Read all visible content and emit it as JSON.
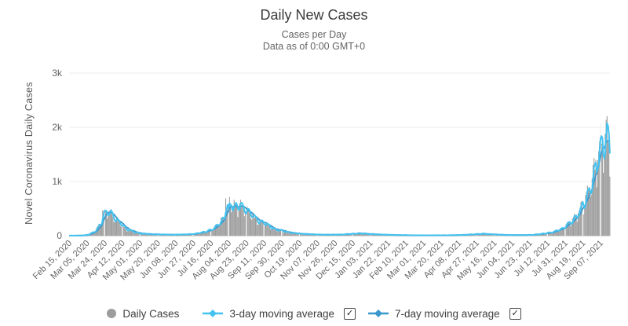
{
  "header": {
    "title": "Daily New Cases",
    "subtitle_line1": "Cases per Day",
    "subtitle_line2": "Data as of 0:00 GMT+0"
  },
  "y_axis": {
    "title": "Novel Coronavirus Daily Cases"
  },
  "legend": {
    "daily_cases_label": "Daily Cases",
    "ma3_label": "3-day moving average",
    "ma7_label": "7-day moving average",
    "ma3_checked": true,
    "ma7_checked": true,
    "checkmark": "✓"
  },
  "colors": {
    "bars": "#9d9d9d",
    "ma3_line": "#45c2f0",
    "ma7_line": "#3a97cc",
    "gridline": "#ececec",
    "axis_line": "#d4d4d4",
    "tick_stripe": "#ffffff",
    "axis_text": "#656565",
    "title_text": "#3b3b3b",
    "subtitle_text": "#646464"
  },
  "chart_data": {
    "type": "bar",
    "title": "Daily New Cases",
    "subtitle": "Cases per Day — Data as of 0:00 GMT+0",
    "ylabel": "Novel Coronavirus Daily Cases",
    "ylim": [
      0,
      3000
    ],
    "y_tick_values": [
      0,
      1000,
      2000,
      3000
    ],
    "y_tick_labels": [
      "0",
      "1k",
      "2k",
      "3k"
    ],
    "grid": "horizontal-only",
    "legend_position": "bottom",
    "x_tick_interval_days": 19,
    "days_total": 581,
    "x_tick_labels": [
      "Feb 15, 2020",
      "Mar 05, 2020",
      "Mar 24, 2020",
      "Apr 12, 2020",
      "May 01, 2020",
      "May 20, 2020",
      "Jun 08, 2020",
      "Jun 27, 2020",
      "Jul 16, 2020",
      "Aug 04, 2020",
      "Aug 23, 2020",
      "Sep 11, 2020",
      "Sep 30, 2020",
      "Oct 19, 2020",
      "Nov 07, 2020",
      "Nov 26, 2020",
      "Dec 15, 2020",
      "Jan 03, 2021",
      "Jan 22, 2021",
      "Feb 10, 2021",
      "Mar 01, 2021",
      "Mar 20, 2021",
      "Apr 08, 2021",
      "Apr 27, 2021",
      "May 16, 2021",
      "Jun 04, 2021",
      "Jun 23, 2021",
      "Jul 12, 2021",
      "Jul 31, 2021",
      "Aug 19, 2021",
      "Sep 07, 2021"
    ],
    "series": [
      {
        "name": "Daily Cases",
        "type": "bar",
        "color": "#9d9d9d"
      },
      {
        "name": "3-day moving average",
        "type": "line",
        "window": 3,
        "color": "#45c2f0"
      },
      {
        "name": "7-day moving average",
        "type": "line",
        "window": 7,
        "color": "#3a97cc"
      }
    ],
    "daily_envelope_points": [
      [
        0,
        1
      ],
      [
        6,
        2
      ],
      [
        12,
        4
      ],
      [
        16,
        8
      ],
      [
        19,
        20
      ],
      [
        22,
        35
      ],
      [
        25,
        55
      ],
      [
        28,
        95
      ],
      [
        31,
        170
      ],
      [
        34,
        280
      ],
      [
        36,
        350
      ],
      [
        38,
        400
      ],
      [
        40,
        415
      ],
      [
        42,
        420
      ],
      [
        44,
        405
      ],
      [
        46,
        380
      ],
      [
        48,
        340
      ],
      [
        50,
        300
      ],
      [
        52,
        260
      ],
      [
        54,
        225
      ],
      [
        56,
        195
      ],
      [
        58,
        165
      ],
      [
        60,
        140
      ],
      [
        62,
        118
      ],
      [
        64,
        100
      ],
      [
        66,
        85
      ],
      [
        68,
        72
      ],
      [
        70,
        62
      ],
      [
        73,
        50
      ],
      [
        76,
        42
      ],
      [
        80,
        35
      ],
      [
        85,
        30
      ],
      [
        90,
        26
      ],
      [
        96,
        23
      ],
      [
        102,
        21
      ],
      [
        108,
        20
      ],
      [
        114,
        20
      ],
      [
        120,
        22
      ],
      [
        126,
        26
      ],
      [
        130,
        30
      ],
      [
        134,
        36
      ],
      [
        138,
        46
      ],
      [
        142,
        60
      ],
      [
        146,
        78
      ],
      [
        150,
        102
      ],
      [
        154,
        135
      ],
      [
        158,
        180
      ],
      [
        161,
        230
      ],
      [
        164,
        290
      ],
      [
        167,
        360
      ],
      [
        170,
        430
      ],
      [
        173,
        490
      ],
      [
        176,
        540
      ],
      [
        179,
        560
      ],
      [
        182,
        545
      ],
      [
        185,
        510
      ],
      [
        188,
        470
      ],
      [
        191,
        430
      ],
      [
        194,
        390
      ],
      [
        197,
        350
      ],
      [
        200,
        310
      ],
      [
        204,
        265
      ],
      [
        208,
        225
      ],
      [
        212,
        188
      ],
      [
        216,
        155
      ],
      [
        220,
        128
      ],
      [
        224,
        105
      ],
      [
        228,
        88
      ],
      [
        232,
        72
      ],
      [
        236,
        60
      ],
      [
        240,
        50
      ],
      [
        245,
        40
      ],
      [
        250,
        33
      ],
      [
        256,
        27
      ],
      [
        262,
        23
      ],
      [
        270,
        20
      ],
      [
        278,
        18
      ],
      [
        286,
        20
      ],
      [
        294,
        25
      ],
      [
        300,
        31
      ],
      [
        306,
        38
      ],
      [
        311,
        42
      ],
      [
        316,
        38
      ],
      [
        322,
        31
      ],
      [
        328,
        25
      ],
      [
        335,
        20
      ],
      [
        342,
        16
      ],
      [
        350,
        12
      ],
      [
        358,
        10
      ],
      [
        368,
        8
      ],
      [
        378,
        7
      ],
      [
        390,
        7
      ],
      [
        402,
        8
      ],
      [
        412,
        10
      ],
      [
        420,
        14
      ],
      [
        426,
        19
      ],
      [
        432,
        26
      ],
      [
        437,
        32
      ],
      [
        442,
        34
      ],
      [
        447,
        30
      ],
      [
        453,
        24
      ],
      [
        460,
        18
      ],
      [
        468,
        14
      ],
      [
        476,
        11
      ],
      [
        484,
        11
      ],
      [
        490,
        12
      ],
      [
        497,
        17
      ],
      [
        503,
        26
      ],
      [
        509,
        40
      ],
      [
        515,
        58
      ],
      [
        520,
        82
      ],
      [
        525,
        112
      ],
      [
        530,
        155
      ],
      [
        535,
        215
      ],
      [
        540,
        295
      ],
      [
        545,
        395
      ],
      [
        549,
        515
      ],
      [
        553,
        665
      ],
      [
        557,
        855
      ],
      [
        560,
        1015
      ],
      [
        563,
        1195
      ],
      [
        566,
        1390
      ],
      [
        569,
        1570
      ],
      [
        572,
        1695
      ],
      [
        575,
        1780
      ],
      [
        577,
        1820
      ],
      [
        579,
        1750
      ],
      [
        580,
        1780
      ]
    ],
    "daily_overrides": {
      "36": 470,
      "45": 490,
      "168": 690,
      "172": 715,
      "570": 2080
    },
    "noise": {
      "seed": 20,
      "weekday_factors": [
        0.85,
        1.05,
        1.18,
        1.12,
        1.06,
        0.96,
        0.74
      ],
      "amplitude": 0.13
    }
  }
}
